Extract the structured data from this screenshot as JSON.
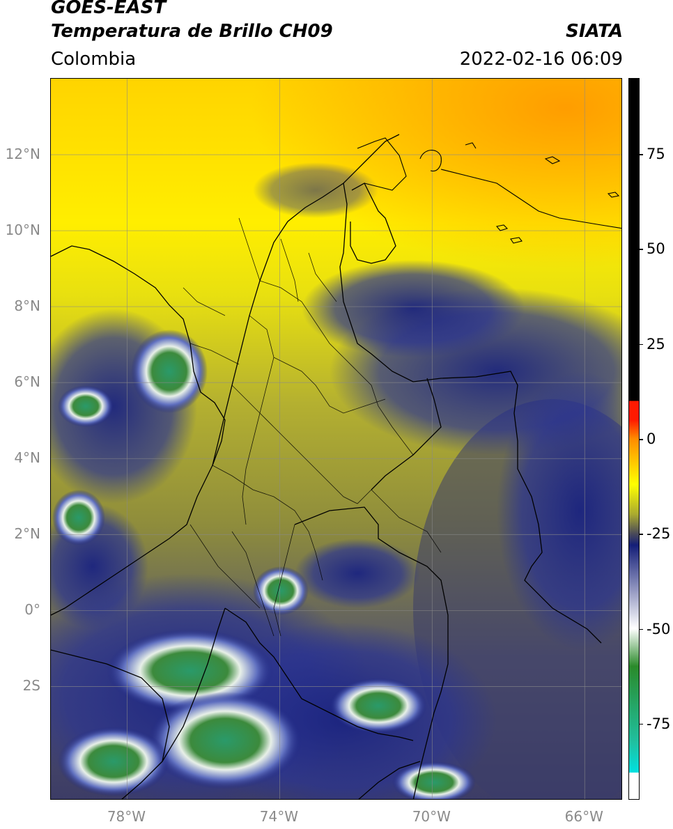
{
  "header": {
    "satellite": "GOES-EAST",
    "product": "Temperatura de Brillo CH09",
    "brand": "SIATA",
    "region": "Colombia",
    "timestamp": "2022-02-16 06:09"
  },
  "map": {
    "lon_range": [
      -80,
      -65
    ],
    "lat_range": [
      -5,
      14
    ],
    "lat_ticks": [
      {
        "value": 12,
        "label": "12°N"
      },
      {
        "value": 10,
        "label": "10°N"
      },
      {
        "value": 8,
        "label": "8°N"
      },
      {
        "value": 6,
        "label": "6°N"
      },
      {
        "value": 4,
        "label": "4°N"
      },
      {
        "value": 2,
        "label": "2°N"
      },
      {
        "value": 0,
        "label": "0°"
      },
      {
        "value": -2,
        "label": "2S"
      }
    ],
    "lon_ticks": [
      {
        "value": -78,
        "label": "78°W"
      },
      {
        "value": -74,
        "label": "74°W"
      },
      {
        "value": -70,
        "label": "70°W"
      },
      {
        "value": -66,
        "label": "66°W"
      }
    ],
    "gridlines": true
  },
  "colorbar": {
    "ticks": [
      {
        "value": 75,
        "label": "75"
      },
      {
        "value": 50,
        "label": "50"
      },
      {
        "value": 25,
        "label": "25"
      },
      {
        "value": 0,
        "label": "0"
      },
      {
        "value": -25,
        "label": "-25"
      },
      {
        "value": -50,
        "label": "-50"
      },
      {
        "value": -75,
        "label": "-75"
      }
    ],
    "range": [
      -95,
      95
    ],
    "colors": {
      "black": "#000000",
      "red": "#ff1a00",
      "orange": "#ff8c00",
      "yellow": "#ffff00",
      "olive": "#a8a830",
      "slate": "#4a4a58",
      "navy": "#141e78",
      "white": "#ffffff",
      "green": "#2a8a2a",
      "teal": "#20c0a0",
      "cyan": "#00e0e0"
    }
  }
}
